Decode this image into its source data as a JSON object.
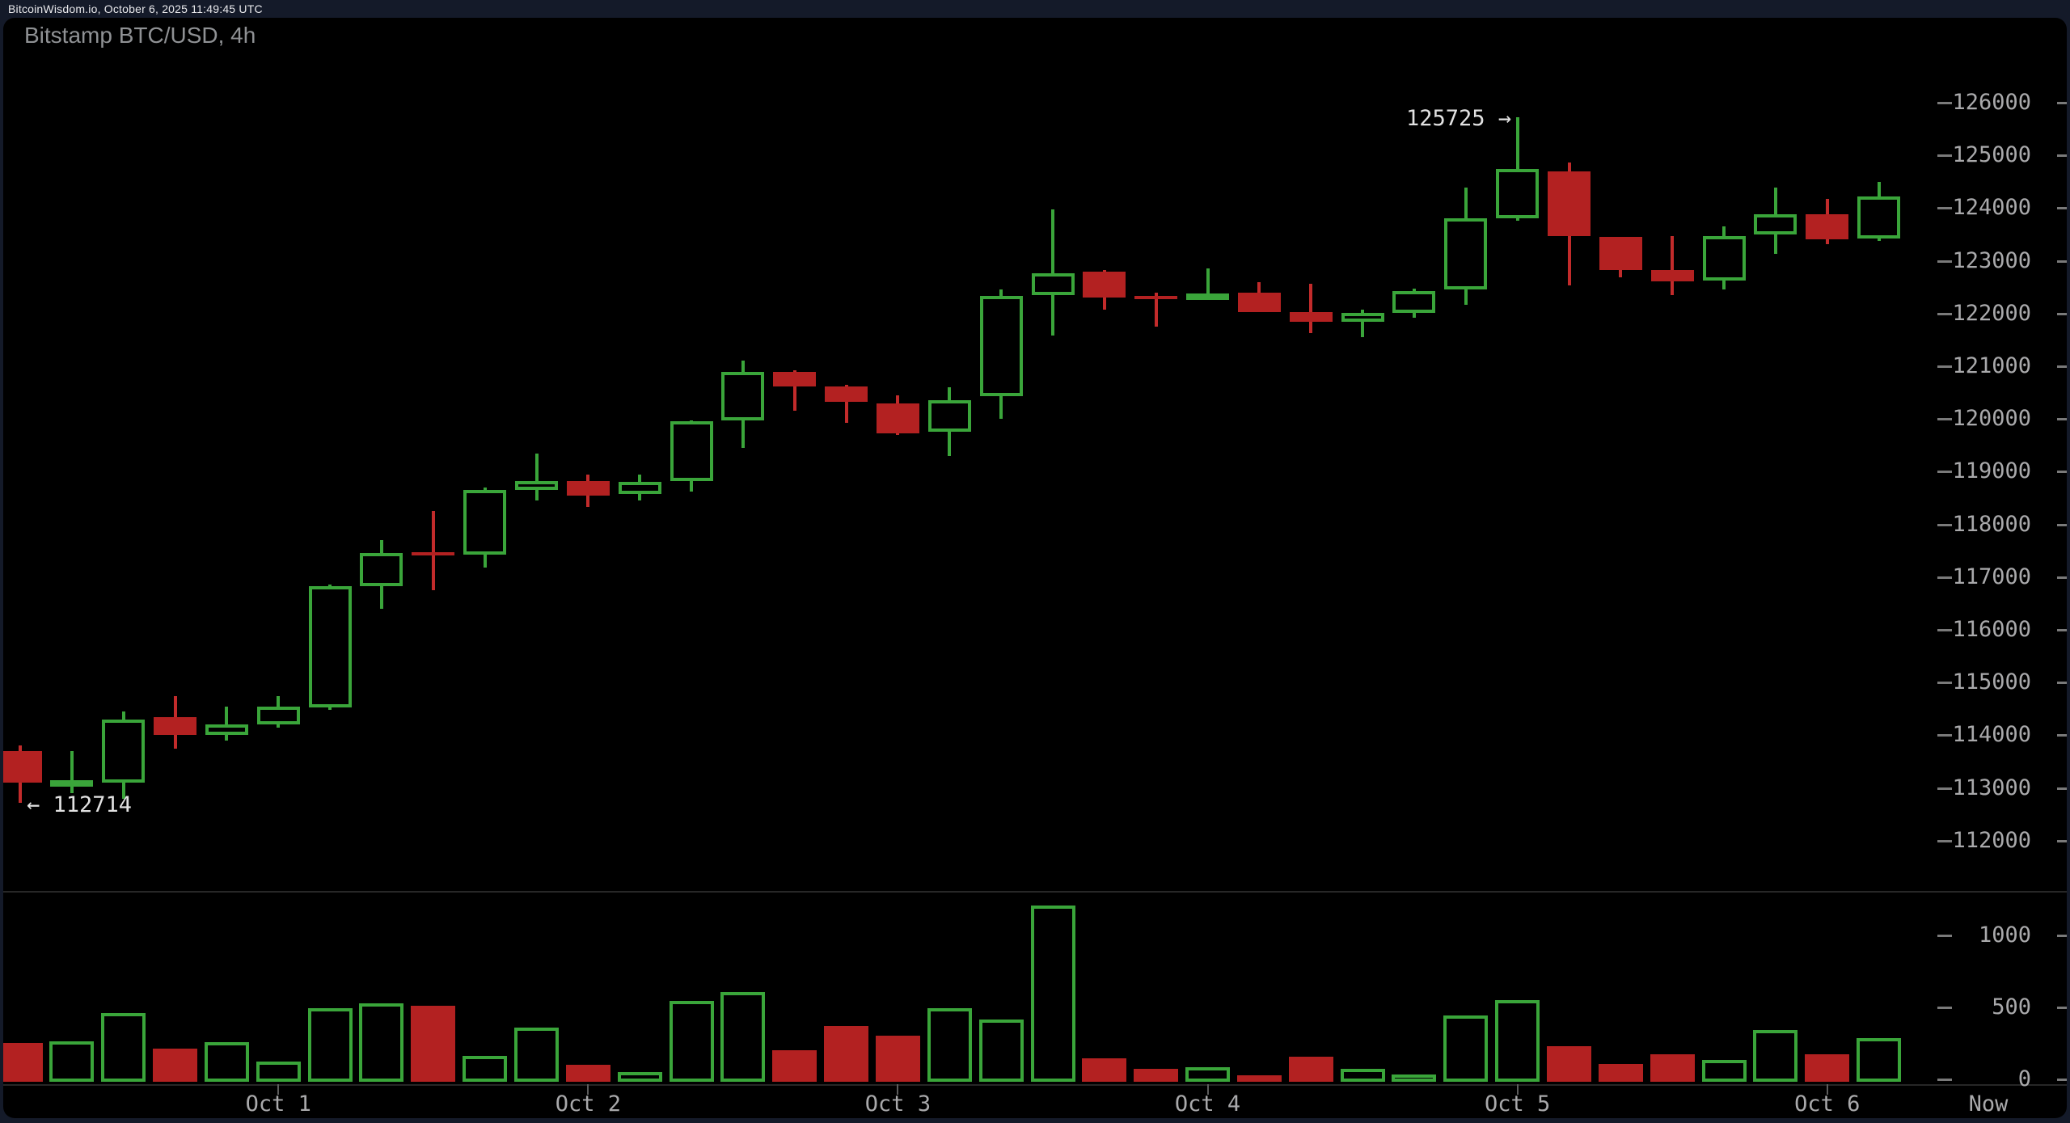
{
  "header": {
    "site_text": "BitcoinWisdom.io, October 6, 2025 11:49:45 UTC"
  },
  "chart": {
    "title": "Bitstamp BTC/USD, 4h"
  },
  "colors": {
    "page_bg": "#141a29",
    "panel_bg": "#000000",
    "up": "#3aa53a",
    "down_fill": "#b32121",
    "down_wick": "#c22b2b",
    "label": "#a9a9ab",
    "annotation": "#e2e2e2"
  },
  "annotations": {
    "low_label": "← 112714",
    "high_label": "125725 →"
  },
  "chart_data": {
    "type": "candlestick_with_volume",
    "exchange_pair_interval": "Bitstamp BTC/USD, 4h",
    "price_axis": {
      "ticks": [
        126000,
        125000,
        124000,
        123000,
        122000,
        121000,
        120000,
        119000,
        118000,
        117000,
        116000,
        115000,
        114000,
        113000,
        112000
      ],
      "side": "right"
    },
    "volume_axis": {
      "ticks": [
        1000,
        500,
        0
      ],
      "side": "right"
    },
    "x_axis": {
      "day_labels": [
        "Oct 1",
        "Oct 2",
        "Oct 3",
        "Oct 4",
        "Oct 5",
        "Oct 6"
      ],
      "day_tick_candle_indices": [
        5,
        11,
        17,
        23,
        29,
        35
      ],
      "now_label": "Now"
    },
    "marked_high": 125725,
    "marked_low": 112714,
    "candles": [
      {
        "open": 113700,
        "high": 113800,
        "low": 112714,
        "close": 113100,
        "volume": 270
      },
      {
        "open": 113100,
        "high": 113700,
        "low": 112900,
        "close": 113150,
        "volume": 280
      },
      {
        "open": 113100,
        "high": 114450,
        "low": 112800,
        "close": 114300,
        "volume": 480
      },
      {
        "open": 114350,
        "high": 114750,
        "low": 113750,
        "close": 114000,
        "volume": 230
      },
      {
        "open": 114000,
        "high": 114550,
        "low": 113900,
        "close": 114200,
        "volume": 275
      },
      {
        "open": 114200,
        "high": 114750,
        "low": 114150,
        "close": 114550,
        "volume": 140
      },
      {
        "open": 114530,
        "high": 116860,
        "low": 114480,
        "close": 116830,
        "volume": 510
      },
      {
        "open": 116830,
        "high": 117700,
        "low": 116400,
        "close": 117450,
        "volume": 545
      },
      {
        "open": 117470,
        "high": 118250,
        "low": 116750,
        "close": 117420,
        "volume": 530
      },
      {
        "open": 117420,
        "high": 118700,
        "low": 117180,
        "close": 118650,
        "volume": 180
      },
      {
        "open": 118650,
        "high": 119350,
        "low": 118450,
        "close": 118820,
        "volume": 375
      },
      {
        "open": 118820,
        "high": 118950,
        "low": 118330,
        "close": 118550,
        "volume": 120
      },
      {
        "open": 118570,
        "high": 118950,
        "low": 118450,
        "close": 118800,
        "volume": 70
      },
      {
        "open": 118820,
        "high": 119975,
        "low": 118630,
        "close": 119950,
        "volume": 560
      },
      {
        "open": 119980,
        "high": 121100,
        "low": 119450,
        "close": 120890,
        "volume": 625
      },
      {
        "open": 120900,
        "high": 120920,
        "low": 120150,
        "close": 120610,
        "volume": 220
      },
      {
        "open": 120610,
        "high": 120650,
        "low": 119920,
        "close": 120320,
        "volume": 390
      },
      {
        "open": 120300,
        "high": 120450,
        "low": 119690,
        "close": 119720,
        "volume": 320
      },
      {
        "open": 119750,
        "high": 120600,
        "low": 119300,
        "close": 120360,
        "volume": 510
      },
      {
        "open": 120425,
        "high": 122450,
        "low": 120000,
        "close": 122340,
        "volume": 435
      },
      {
        "open": 122350,
        "high": 123975,
        "low": 121575,
        "close": 122770,
        "volume": 1225
      },
      {
        "open": 122800,
        "high": 122820,
        "low": 122075,
        "close": 122300,
        "volume": 165
      },
      {
        "open": 122340,
        "high": 122400,
        "low": 121750,
        "close": 122300,
        "volume": 90
      },
      {
        "open": 122320,
        "high": 122850,
        "low": 122275,
        "close": 122380,
        "volume": 100
      },
      {
        "open": 122400,
        "high": 122600,
        "low": 122030,
        "close": 122030,
        "volume": 45
      },
      {
        "open": 122030,
        "high": 122570,
        "low": 121630,
        "close": 121850,
        "volume": 175
      },
      {
        "open": 121850,
        "high": 122075,
        "low": 121550,
        "close": 122015,
        "volume": 90
      },
      {
        "open": 122015,
        "high": 122475,
        "low": 121925,
        "close": 122430,
        "volume": 50
      },
      {
        "open": 122460,
        "high": 124390,
        "low": 122170,
        "close": 123800,
        "volume": 460
      },
      {
        "open": 123800,
        "high": 125725,
        "low": 123760,
        "close": 124740,
        "volume": 565
      },
      {
        "open": 124700,
        "high": 124860,
        "low": 122540,
        "close": 123470,
        "volume": 250
      },
      {
        "open": 123450,
        "high": 123460,
        "low": 122690,
        "close": 122830,
        "volume": 125
      },
      {
        "open": 122830,
        "high": 123470,
        "low": 122350,
        "close": 122610,
        "volume": 190
      },
      {
        "open": 122630,
        "high": 123650,
        "low": 122460,
        "close": 123470,
        "volume": 150
      },
      {
        "open": 123500,
        "high": 124390,
        "low": 123130,
        "close": 123880,
        "volume": 360
      },
      {
        "open": 123880,
        "high": 124175,
        "low": 123315,
        "close": 123410,
        "volume": 190
      },
      {
        "open": 123425,
        "high": 124500,
        "low": 123375,
        "close": 124220,
        "volume": 305
      }
    ]
  }
}
